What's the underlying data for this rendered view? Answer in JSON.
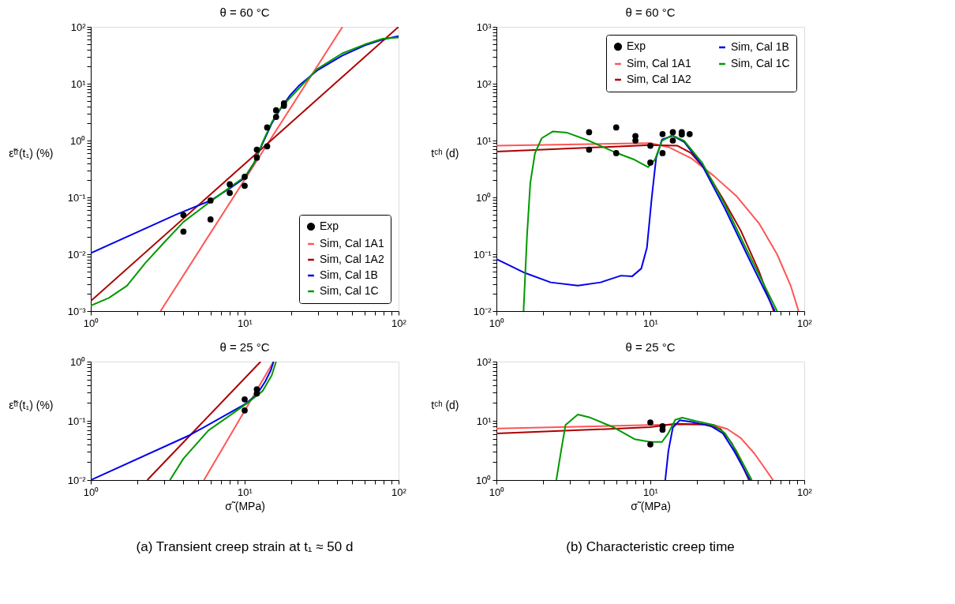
{
  "chart_data": [
    {
      "type": "line",
      "title": "θ = 60 °C",
      "ylabel": "ε̃ᵗʳ(t₁) (%)",
      "log": "xy",
      "legend": "bottom right",
      "xlim": [
        1,
        100
      ],
      "ylim": [
        0.001,
        100
      ],
      "xticks": [
        {
          "value": 1,
          "label": "10⁰"
        },
        {
          "value": 2,
          "label": null
        },
        {
          "value": 3,
          "label": null
        },
        {
          "value": 4,
          "label": null
        },
        {
          "value": 5,
          "label": null
        },
        {
          "value": 6,
          "label": null
        },
        {
          "value": 7,
          "label": null
        },
        {
          "value": 8,
          "label": null
        },
        {
          "value": 9,
          "label": null
        },
        {
          "value": 10,
          "label": "10¹"
        },
        {
          "value": 20,
          "label": null
        },
        {
          "value": 30,
          "label": null
        },
        {
          "value": 40,
          "label": null
        },
        {
          "value": 50,
          "label": null
        },
        {
          "value": 60,
          "label": null
        },
        {
          "value": 70,
          "label": null
        },
        {
          "value": 80,
          "label": null
        },
        {
          "value": 90,
          "label": null
        },
        {
          "value": 100,
          "label": "10²"
        }
      ],
      "yticks": [
        {
          "value": 0.001,
          "label": "10⁻³"
        },
        {
          "value": 0.002,
          "label": null
        },
        {
          "value": 0.003,
          "label": null
        },
        {
          "value": 0.004,
          "label": null
        },
        {
          "value": 0.005,
          "label": null
        },
        {
          "value": 0.006,
          "label": null
        },
        {
          "value": 0.007,
          "label": null
        },
        {
          "value": 0.008,
          "label": null
        },
        {
          "value": 0.009,
          "label": null
        },
        {
          "value": 0.01,
          "label": "10⁻²"
        },
        {
          "value": 0.02,
          "label": null
        },
        {
          "value": 0.03,
          "label": null
        },
        {
          "value": 0.04,
          "label": null
        },
        {
          "value": 0.05,
          "label": null
        },
        {
          "value": 0.06,
          "label": null
        },
        {
          "value": 0.07,
          "label": null
        },
        {
          "value": 0.08,
          "label": null
        },
        {
          "value": 0.09,
          "label": null
        },
        {
          "value": 0.1,
          "label": "10⁻¹"
        },
        {
          "value": 0.2,
          "label": null
        },
        {
          "value": 0.3,
          "label": null
        },
        {
          "value": 0.4,
          "label": null
        },
        {
          "value": 0.5,
          "label": null
        },
        {
          "value": 0.6,
          "label": null
        },
        {
          "value": 0.7,
          "label": null
        },
        {
          "value": 0.8,
          "label": null
        },
        {
          "value": 0.9,
          "label": null
        },
        {
          "value": 1,
          "label": "10⁰"
        },
        {
          "value": 2,
          "label": null
        },
        {
          "value": 3,
          "label": null
        },
        {
          "value": 4,
          "label": null
        },
        {
          "value": 5,
          "label": null
        },
        {
          "value": 6,
          "label": null
        },
        {
          "value": 7,
          "label": null
        },
        {
          "value": 8,
          "label": null
        },
        {
          "value": 9,
          "label": null
        },
        {
          "value": 10,
          "label": "10¹"
        },
        {
          "value": 20,
          "label": null
        },
        {
          "value": 30,
          "label": null
        },
        {
          "value": 40,
          "label": null
        },
        {
          "value": 50,
          "label": null
        },
        {
          "value": 60,
          "label": null
        },
        {
          "value": 70,
          "label": null
        },
        {
          "value": 80,
          "label": null
        },
        {
          "value": 90,
          "label": null
        },
        {
          "value": 100,
          "label": "10²"
        }
      ],
      "series": [
        {
          "name": "Exp",
          "type": "scatter",
          "marker": "circle",
          "color": "#000000",
          "x": [
            4,
            4,
            6,
            6,
            8,
            8,
            10,
            10,
            12,
            12,
            14,
            14,
            16,
            16,
            18,
            18
          ],
          "values": [
            0.049,
            0.025,
            0.088,
            0.041,
            0.17,
            0.12,
            0.23,
            0.16,
            0.69,
            0.5,
            1.7,
            0.79,
            3.4,
            2.6,
            4.5,
            4.1
          ]
        },
        {
          "name": "Sim, Cal 1A1",
          "color": "#ff5555",
          "x": [
            2.84,
            43.2
          ],
          "values": [
            0.001,
            100
          ]
        },
        {
          "name": "Sim, Cal 1A2",
          "color": "#aa0000",
          "x": [
            1,
            100
          ],
          "values": [
            0.0015,
            100
          ]
        },
        {
          "name": "Sim, Cal 1B",
          "color": "#0000ee",
          "x": [
            1,
            3.6,
            6,
            8,
            10,
            11.5,
            13.1,
            15,
            17.2,
            19.7,
            22.5,
            29.5,
            42.9,
            60.2,
            78.9,
            100
          ],
          "values": [
            0.0105,
            0.05,
            0.088,
            0.144,
            0.22,
            0.4,
            0.9,
            2.0,
            3.7,
            6.2,
            9.2,
            17,
            31,
            47,
            60,
            69
          ]
        },
        {
          "name": "Sim, Cal 1C",
          "color": "#009900",
          "x": [
            1,
            1.31,
            1.72,
            2.25,
            2.96,
            4,
            6,
            8,
            10,
            11.5,
            13.1,
            15,
            17.2,
            29.5,
            42.9,
            60.2,
            78.9,
            100
          ],
          "values": [
            0.00125,
            0.0017,
            0.0028,
            0.0069,
            0.0155,
            0.037,
            0.085,
            0.15,
            0.23,
            0.4,
            0.94,
            2.1,
            3.8,
            18,
            34,
            49,
            62,
            65
          ]
        }
      ]
    },
    {
      "type": "line",
      "title": "θ = 60 °C",
      "ylabel": "tᶜʰ (d)",
      "log": "xy",
      "legend": "top right",
      "xlim": [
        1,
        100
      ],
      "ylim": [
        0.01,
        1000
      ],
      "xticks": [
        {
          "value": 1,
          "label": "10⁰"
        },
        {
          "value": 2,
          "label": null
        },
        {
          "value": 3,
          "label": null
        },
        {
          "value": 4,
          "label": null
        },
        {
          "value": 5,
          "label": null
        },
        {
          "value": 6,
          "label": null
        },
        {
          "value": 7,
          "label": null
        },
        {
          "value": 8,
          "label": null
        },
        {
          "value": 9,
          "label": null
        },
        {
          "value": 10,
          "label": "10¹"
        },
        {
          "value": 20,
          "label": null
        },
        {
          "value": 30,
          "label": null
        },
        {
          "value": 40,
          "label": null
        },
        {
          "value": 50,
          "label": null
        },
        {
          "value": 60,
          "label": null
        },
        {
          "value": 70,
          "label": null
        },
        {
          "value": 80,
          "label": null
        },
        {
          "value": 90,
          "label": null
        },
        {
          "value": 100,
          "label": "10²"
        }
      ],
      "yticks": [
        {
          "value": 0.01,
          "label": "10⁻²"
        },
        {
          "value": 0.02,
          "label": null
        },
        {
          "value": 0.03,
          "label": null
        },
        {
          "value": 0.04,
          "label": null
        },
        {
          "value": 0.05,
          "label": null
        },
        {
          "value": 0.06,
          "label": null
        },
        {
          "value": 0.07,
          "label": null
        },
        {
          "value": 0.08,
          "label": null
        },
        {
          "value": 0.09,
          "label": null
        },
        {
          "value": 0.1,
          "label": "10⁻¹"
        },
        {
          "value": 0.2,
          "label": null
        },
        {
          "value": 0.3,
          "label": null
        },
        {
          "value": 0.4,
          "label": null
        },
        {
          "value": 0.5,
          "label": null
        },
        {
          "value": 0.6,
          "label": null
        },
        {
          "value": 0.7,
          "label": null
        },
        {
          "value": 0.8,
          "label": null
        },
        {
          "value": 0.9,
          "label": null
        },
        {
          "value": 1,
          "label": "10⁰"
        },
        {
          "value": 2,
          "label": null
        },
        {
          "value": 3,
          "label": null
        },
        {
          "value": 4,
          "label": null
        },
        {
          "value": 5,
          "label": null
        },
        {
          "value": 6,
          "label": null
        },
        {
          "value": 7,
          "label": null
        },
        {
          "value": 8,
          "label": null
        },
        {
          "value": 9,
          "label": null
        },
        {
          "value": 10,
          "label": "10¹"
        },
        {
          "value": 20,
          "label": null
        },
        {
          "value": 30,
          "label": null
        },
        {
          "value": 40,
          "label": null
        },
        {
          "value": 50,
          "label": null
        },
        {
          "value": 60,
          "label": null
        },
        {
          "value": 70,
          "label": null
        },
        {
          "value": 80,
          "label": null
        },
        {
          "value": 90,
          "label": null
        },
        {
          "value": 100,
          "label": "10²"
        },
        {
          "value": 200,
          "label": null
        },
        {
          "value": 300,
          "label": null
        },
        {
          "value": 400,
          "label": null
        },
        {
          "value": 500,
          "label": null
        },
        {
          "value": 600,
          "label": null
        },
        {
          "value": 700,
          "label": null
        },
        {
          "value": 800,
          "label": null
        },
        {
          "value": 900,
          "label": null
        },
        {
          "value": 1000,
          "label": "10³"
        }
      ],
      "series": [
        {
          "name": "Exp",
          "type": "scatter",
          "marker": "circle",
          "color": "#000000",
          "x": [
            4,
            4,
            6,
            6,
            8,
            8,
            10,
            10,
            12,
            12,
            14,
            14,
            16,
            16,
            18
          ],
          "values": [
            14,
            6.9,
            17,
            6,
            12,
            10,
            8.1,
            4.1,
            13,
            6,
            14,
            10,
            14,
            12.8,
            13
          ]
        },
        {
          "name": "Sim, Cal 1A1",
          "color": "#ff5555",
          "x": [
            1,
            10,
            13.1,
            18.4,
            25.8,
            36.2,
            50.8,
            66.6,
            81.6,
            91.9
          ],
          "values": [
            8.1,
            9,
            7.7,
            4.9,
            2.4,
            1.06,
            0.35,
            0.1,
            0.028,
            0.01
          ]
        },
        {
          "name": "Sim, Cal 1A2",
          "color": "#aa0000",
          "x": [
            1,
            10,
            15,
            18.4,
            22.5,
            29.5,
            38.7,
            50.8,
            63.3
          ],
          "values": [
            6.4,
            8.3,
            8.1,
            6,
            3.2,
            0.96,
            0.26,
            0.05,
            0.01
          ]
        },
        {
          "name": "Sim, Cal 1B",
          "color": "#0000ee",
          "x": [
            1,
            1.5,
            2.25,
            3.38,
            4.75,
            6.44,
            7.63,
            8.73,
            9.5,
            10.2,
            10.9,
            11.9,
            14,
            16.6,
            21.8,
            30.5,
            42.9,
            64.4
          ],
          "values": [
            0.082,
            0.048,
            0.032,
            0.028,
            0.032,
            0.042,
            0.041,
            0.056,
            0.13,
            0.96,
            4.9,
            10.4,
            12.1,
            9.4,
            3.6,
            0.64,
            0.093,
            0.01
          ]
        },
        {
          "name": "Sim, Cal 1C",
          "color": "#009900",
          "x": [
            1.5,
            1.58,
            1.66,
            1.78,
            1.97,
            2.33,
            2.86,
            4,
            5.82,
            7.89,
            9.66,
            10.7,
            11.9,
            13.8,
            16.6,
            21.8,
            30.5,
            42.9,
            66.6
          ],
          "values": [
            0.01,
            0.21,
            1.8,
            6,
            11,
            14.5,
            13.8,
            9.9,
            6.3,
            4.6,
            3.4,
            4.6,
            9.9,
            12.4,
            9.9,
            4,
            0.75,
            0.11,
            0.01
          ]
        }
      ]
    },
    {
      "type": "line",
      "title": "θ = 25 °C",
      "ylabel": "ε̃ᵗʳ(t₁) (%)",
      "xlabel": "σ̃  (MPa)",
      "log": "xy",
      "legend": false,
      "annotations": [
        "(a) Transient creep strain at t₁ ≈ 50 d"
      ],
      "xlim": [
        1,
        100
      ],
      "ylim": [
        0.01,
        1
      ],
      "xticks": [
        {
          "value": 1,
          "label": "10⁰"
        },
        {
          "value": 2,
          "label": null
        },
        {
          "value": 3,
          "label": null
        },
        {
          "value": 4,
          "label": null
        },
        {
          "value": 5,
          "label": null
        },
        {
          "value": 6,
          "label": null
        },
        {
          "value": 7,
          "label": null
        },
        {
          "value": 8,
          "label": null
        },
        {
          "value": 9,
          "label": null
        },
        {
          "value": 10,
          "label": "10¹"
        },
        {
          "value": 20,
          "label": null
        },
        {
          "value": 30,
          "label": null
        },
        {
          "value": 40,
          "label": null
        },
        {
          "value": 50,
          "label": null
        },
        {
          "value": 60,
          "label": null
        },
        {
          "value": 70,
          "label": null
        },
        {
          "value": 80,
          "label": null
        },
        {
          "value": 90,
          "label": null
        },
        {
          "value": 100,
          "label": "10²"
        }
      ],
      "yticks": [
        {
          "value": 0.01,
          "label": "10⁻²"
        },
        {
          "value": 0.02,
          "label": null
        },
        {
          "value": 0.03,
          "label": null
        },
        {
          "value": 0.04,
          "label": null
        },
        {
          "value": 0.05,
          "label": null
        },
        {
          "value": 0.06,
          "label": null
        },
        {
          "value": 0.07,
          "label": null
        },
        {
          "value": 0.08,
          "label": null
        },
        {
          "value": 0.09,
          "label": null
        },
        {
          "value": 0.1,
          "label": "10⁻¹"
        },
        {
          "value": 0.2,
          "label": null
        },
        {
          "value": 0.3,
          "label": null
        },
        {
          "value": 0.4,
          "label": null
        },
        {
          "value": 0.5,
          "label": null
        },
        {
          "value": 0.6,
          "label": null
        },
        {
          "value": 0.7,
          "label": null
        },
        {
          "value": 0.8,
          "label": null
        },
        {
          "value": 0.9,
          "label": null
        },
        {
          "value": 1,
          "label": "10⁰"
        }
      ],
      "series": [
        {
          "type": "scatter",
          "marker": "circle",
          "color": "#000000",
          "x": [
            10,
            10,
            12,
            12
          ],
          "values": [
            0.23,
            0.15,
            0.34,
            0.29
          ]
        },
        {
          "color": "#ff5555",
          "x": [
            5.44,
            15.4
          ],
          "values": [
            0.01,
            1
          ]
        },
        {
          "color": "#aa0000",
          "x": [
            2.33,
            12.7
          ],
          "values": [
            0.01,
            1
          ]
        },
        {
          "color": "#0000ee",
          "x": [
            1,
            4.44,
            10,
            11.9,
            13.6,
            14.8,
            15.4
          ],
          "values": [
            0.01,
            0.058,
            0.19,
            0.27,
            0.46,
            0.72,
            1
          ]
        },
        {
          "color": "#009900",
          "x": [
            3.27,
            4,
            5.82,
            7.89,
            10.7,
            13.1,
            15,
            16
          ],
          "values": [
            0.01,
            0.023,
            0.069,
            0.12,
            0.21,
            0.32,
            0.59,
            1
          ]
        }
      ]
    },
    {
      "type": "line",
      "title": "θ = 25 °C",
      "ylabel": "tᶜʰ (d)",
      "xlabel": "σ̃  (MPa)",
      "log": "xy",
      "legend": false,
      "annotations": [
        "(b) Characteristic creep time"
      ],
      "xlim": [
        1,
        100
      ],
      "ylim": [
        1,
        100
      ],
      "xticks": [
        {
          "value": 1,
          "label": "10⁰"
        },
        {
          "value": 2,
          "label": null
        },
        {
          "value": 3,
          "label": null
        },
        {
          "value": 4,
          "label": null
        },
        {
          "value": 5,
          "label": null
        },
        {
          "value": 6,
          "label": null
        },
        {
          "value": 7,
          "label": null
        },
        {
          "value": 8,
          "label": null
        },
        {
          "value": 9,
          "label": null
        },
        {
          "value": 10,
          "label": "10¹"
        },
        {
          "value": 20,
          "label": null
        },
        {
          "value": 30,
          "label": null
        },
        {
          "value": 40,
          "label": null
        },
        {
          "value": 50,
          "label": null
        },
        {
          "value": 60,
          "label": null
        },
        {
          "value": 70,
          "label": null
        },
        {
          "value": 80,
          "label": null
        },
        {
          "value": 90,
          "label": null
        },
        {
          "value": 100,
          "label": "10²"
        }
      ],
      "yticks": [
        {
          "value": 1,
          "label": "10⁰"
        },
        {
          "value": 2,
          "label": null
        },
        {
          "value": 3,
          "label": null
        },
        {
          "value": 4,
          "label": null
        },
        {
          "value": 5,
          "label": null
        },
        {
          "value": 6,
          "label": null
        },
        {
          "value": 7,
          "label": null
        },
        {
          "value": 8,
          "label": null
        },
        {
          "value": 9,
          "label": null
        },
        {
          "value": 10,
          "label": "10¹"
        },
        {
          "value": 20,
          "label": null
        },
        {
          "value": 30,
          "label": null
        },
        {
          "value": 40,
          "label": null
        },
        {
          "value": 50,
          "label": null
        },
        {
          "value": 60,
          "label": null
        },
        {
          "value": 70,
          "label": null
        },
        {
          "value": 80,
          "label": null
        },
        {
          "value": 90,
          "label": null
        },
        {
          "value": 100,
          "label": "10²"
        }
      ],
      "series": [
        {
          "type": "scatter",
          "marker": "circle",
          "color": "#000000",
          "x": [
            10,
            10,
            12,
            12
          ],
          "values": [
            9.4,
            4,
            8.1,
            7.1
          ]
        },
        {
          "color": "#ff5555",
          "x": [
            1,
            10,
            18.4,
            25.8,
            31.6,
            38.7,
            47.5,
            56.2,
            62.7
          ],
          "values": [
            7.4,
            8.5,
            8.7,
            8.5,
            7.3,
            5.1,
            2.8,
            1.5,
            1
          ]
        },
        {
          "color": "#aa0000",
          "x": [
            1,
            10,
            14.5,
            22.5,
            28.6,
            33.8,
            38.7,
            43.7
          ],
          "values": [
            6.1,
            7.8,
            8.9,
            8.7,
            7.3,
            4.2,
            2,
            1
          ]
        },
        {
          "color": "#0000ee",
          "x": [
            12.5,
            13.1,
            14,
            15.5,
            18.4,
            24.9,
            29.5,
            35,
            44.4
          ],
          "values": [
            1,
            3.1,
            7.7,
            10.2,
            9.6,
            8.1,
            6.2,
            3.1,
            1
          ]
        },
        {
          "color": "#009900",
          "x": [
            2.45,
            2.63,
            2.81,
            3.38,
            4,
            5.82,
            7.89,
            10,
            11.9,
            13.1,
            14.5,
            16.1,
            19.7,
            25.8,
            30.5,
            36.2,
            45.6
          ],
          "values": [
            1,
            3.1,
            8.5,
            12.8,
            11.5,
            7.7,
            4.9,
            4.4,
            4.4,
            6.2,
            10.4,
            11.3,
            9.9,
            8.5,
            6.2,
            3.1,
            1
          ]
        }
      ]
    }
  ]
}
